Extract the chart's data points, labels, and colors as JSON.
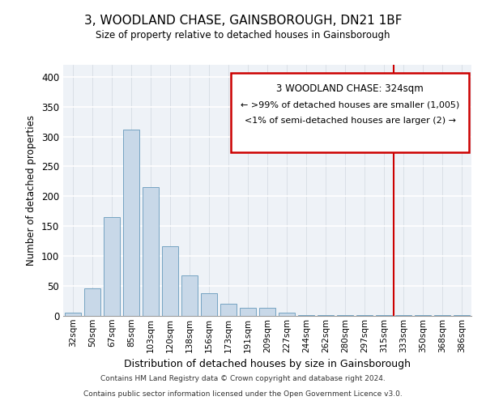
{
  "title": "3, WOODLAND CHASE, GAINSBOROUGH, DN21 1BF",
  "subtitle": "Size of property relative to detached houses in Gainsborough",
  "xlabel": "Distribution of detached houses by size in Gainsborough",
  "ylabel": "Number of detached properties",
  "bin_labels": [
    "32sqm",
    "50sqm",
    "67sqm",
    "85sqm",
    "103sqm",
    "120sqm",
    "138sqm",
    "156sqm",
    "173sqm",
    "191sqm",
    "209sqm",
    "227sqm",
    "244sqm",
    "262sqm",
    "280sqm",
    "297sqm",
    "315sqm",
    "333sqm",
    "350sqm",
    "368sqm",
    "386sqm"
  ],
  "bar_heights": [
    5,
    46,
    165,
    312,
    216,
    116,
    68,
    38,
    20,
    13,
    13,
    5,
    2,
    2,
    1,
    1,
    1,
    1,
    1,
    1,
    1
  ],
  "bar_color": "#c8d8e8",
  "bar_edge_color": "#6699bb",
  "ylim": [
    0,
    420
  ],
  "yticks": [
    0,
    50,
    100,
    150,
    200,
    250,
    300,
    350,
    400
  ],
  "vline_color": "#cc0000",
  "annotation_title": "3 WOODLAND CHASE: 324sqm",
  "annotation_line1": "← >99% of detached houses are smaller (1,005)",
  "annotation_line2": "<1% of semi-detached houses are larger (2) →",
  "annotation_box_color": "#cc0000",
  "footer_line1": "Contains HM Land Registry data © Crown copyright and database right 2024.",
  "footer_line2": "Contains public sector information licensed under the Open Government Licence v3.0.",
  "background_color": "#eef2f7"
}
